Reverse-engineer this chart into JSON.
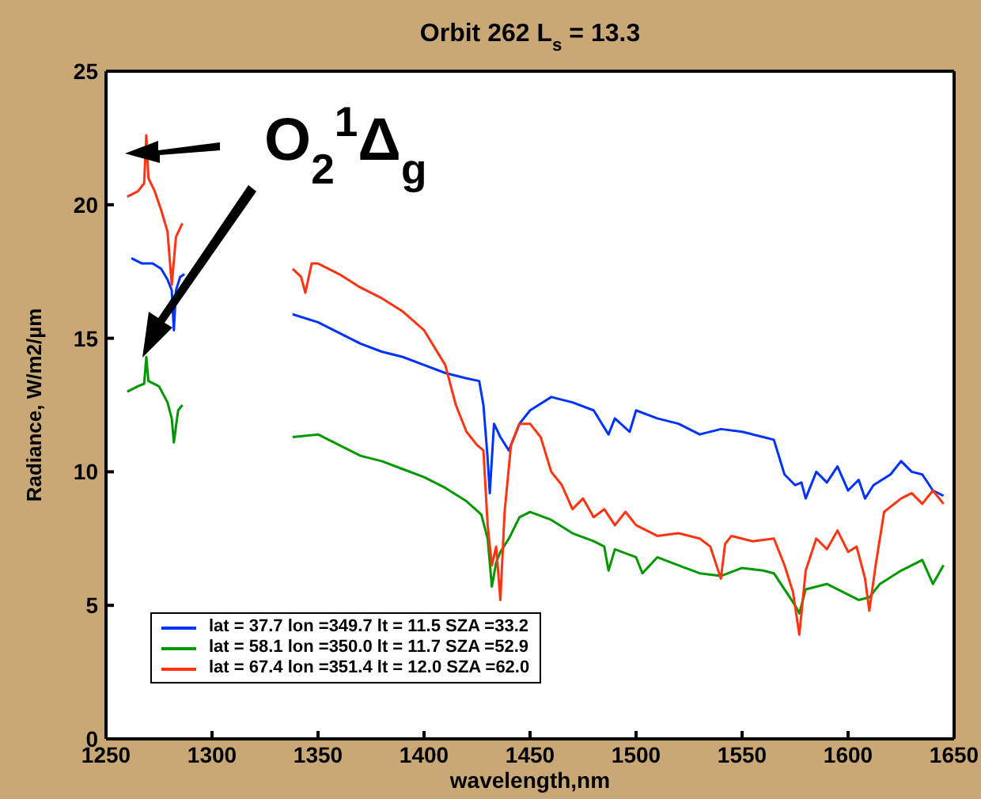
{
  "chart_data": {
    "type": "line",
    "title": "Orbit 262 L$_{s}$ = 13.3",
    "xlabel": "wavelength,nm",
    "ylabel": "Radiance, W/m2/µm",
    "annotations": [
      "O$_{2}$$^{1}$Δ$_{g}$"
    ],
    "xlim": [
      1250,
      1650
    ],
    "xticks": [
      1250,
      1300,
      1350,
      1400,
      1450,
      1500,
      1550,
      1600,
      1650
    ],
    "ylim": [
      0,
      25
    ],
    "yticks": [
      0,
      5,
      10,
      15,
      20,
      25
    ],
    "grid": false,
    "legend": "bottom left",
    "marker": "none",
    "line_style": "solid",
    "series": [
      {
        "name": "lat = 37.7 lon =349.7 lt = 11.5 SZA =33.2",
        "color": "#0033ff",
        "x": [
          1262,
          1267,
          1272,
          1276,
          1279,
          1281,
          1282,
          1283,
          1285,
          1287,
          1310,
          1338,
          1350,
          1360,
          1370,
          1380,
          1390,
          1400,
          1410,
          1420,
          1426,
          1428,
          1430,
          1431,
          1433,
          1436,
          1440,
          1445,
          1450,
          1460,
          1470,
          1480,
          1487,
          1490,
          1497,
          1500,
          1510,
          1520,
          1530,
          1540,
          1550,
          1560,
          1565,
          1570,
          1575,
          1578,
          1580,
          1585,
          1590,
          1595,
          1600,
          1605,
          1608,
          1612,
          1620,
          1625,
          1630,
          1635,
          1640,
          1645
        ],
        "values": [
          18.0,
          17.8,
          17.8,
          17.6,
          17.2,
          16.8,
          15.3,
          16.8,
          17.3,
          17.4,
          null,
          15.9,
          15.6,
          15.2,
          14.8,
          14.5,
          14.3,
          14.0,
          13.7,
          13.5,
          13.4,
          12.5,
          10.5,
          9.2,
          11.8,
          11.3,
          10.8,
          11.8,
          12.3,
          12.8,
          12.6,
          12.3,
          11.4,
          12.0,
          11.5,
          12.3,
          12.0,
          11.8,
          11.4,
          11.6,
          11.5,
          11.3,
          11.2,
          9.9,
          9.5,
          9.6,
          9.0,
          10.0,
          9.6,
          10.2,
          9.3,
          9.7,
          9.0,
          9.5,
          9.9,
          10.4,
          10.0,
          9.9,
          9.3,
          9.1
        ]
      },
      {
        "name": "lat = 58.1 lon =350.0 lt = 11.7 SZA =52.9",
        "color": "#009900",
        "x": [
          1260,
          1265,
          1268,
          1269,
          1270,
          1275,
          1279,
          1281,
          1282,
          1284,
          1286,
          1310,
          1338,
          1350,
          1360,
          1370,
          1380,
          1390,
          1400,
          1410,
          1420,
          1427,
          1430,
          1432,
          1434,
          1436,
          1440,
          1445,
          1450,
          1460,
          1470,
          1480,
          1485,
          1487,
          1490,
          1500,
          1503,
          1510,
          1520,
          1530,
          1540,
          1550,
          1560,
          1565,
          1570,
          1575,
          1577,
          1580,
          1590,
          1600,
          1605,
          1610,
          1615,
          1625,
          1630,
          1635,
          1640,
          1645
        ],
        "values": [
          13.0,
          13.2,
          13.3,
          14.3,
          13.4,
          13.2,
          12.6,
          12.0,
          11.1,
          12.3,
          12.5,
          null,
          11.3,
          11.4,
          11.0,
          10.6,
          10.4,
          10.1,
          9.8,
          9.4,
          8.9,
          8.4,
          7.5,
          5.7,
          6.6,
          7.0,
          7.5,
          8.3,
          8.5,
          8.2,
          7.7,
          7.4,
          7.2,
          6.3,
          7.1,
          6.8,
          6.2,
          6.8,
          6.5,
          6.2,
          6.1,
          6.4,
          6.3,
          6.2,
          5.6,
          5.0,
          4.7,
          5.6,
          5.8,
          5.4,
          5.2,
          5.3,
          5.8,
          6.3,
          6.5,
          6.7,
          5.8,
          6.5
        ]
      },
      {
        "name": "lat = 67.4 lon =351.4 lt = 12.0 SZA =62.0",
        "color": "#ff3311",
        "x": [
          1260,
          1265,
          1268,
          1269,
          1270,
          1273,
          1276,
          1279,
          1281,
          1283,
          1286,
          1310,
          1338,
          1342,
          1344,
          1347,
          1350,
          1360,
          1370,
          1380,
          1390,
          1400,
          1410,
          1415,
          1420,
          1425,
          1428,
          1430,
          1432,
          1434,
          1436,
          1438,
          1441,
          1445,
          1450,
          1455,
          1460,
          1465,
          1470,
          1475,
          1480,
          1485,
          1490,
          1495,
          1500,
          1510,
          1520,
          1530,
          1535,
          1540,
          1542,
          1545,
          1555,
          1565,
          1570,
          1574,
          1577,
          1580,
          1585,
          1590,
          1595,
          1600,
          1604,
          1608,
          1610,
          1613,
          1617,
          1625,
          1630,
          1635,
          1640,
          1645
        ],
        "values": [
          20.3,
          20.5,
          20.8,
          22.6,
          21.0,
          20.5,
          19.8,
          19.0,
          17.0,
          18.8,
          19.3,
          null,
          17.6,
          17.3,
          16.7,
          17.8,
          17.8,
          17.4,
          16.9,
          16.5,
          16.0,
          15.3,
          14.0,
          12.5,
          11.5,
          11.0,
          10.8,
          8.0,
          6.5,
          7.2,
          5.2,
          8.5,
          11.0,
          11.8,
          11.8,
          11.3,
          10.0,
          9.5,
          8.6,
          9.0,
          8.3,
          8.6,
          8.0,
          8.5,
          8.0,
          7.6,
          7.7,
          7.5,
          7.2,
          6.0,
          7.3,
          7.6,
          7.4,
          7.5,
          6.5,
          5.5,
          3.9,
          6.3,
          7.5,
          7.1,
          7.8,
          7.0,
          7.2,
          6.0,
          4.8,
          6.5,
          8.5,
          9.0,
          9.2,
          8.8,
          9.3,
          8.8
        ]
      }
    ]
  }
}
